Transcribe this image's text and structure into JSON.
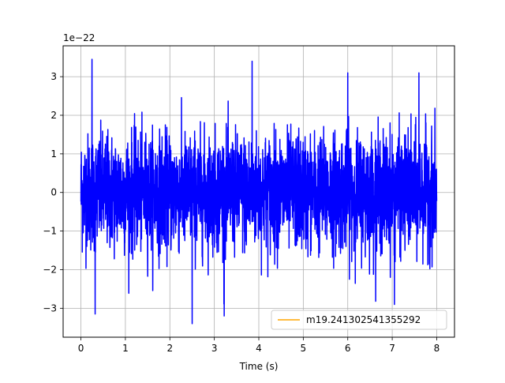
{
  "chart_data": {
    "type": "line",
    "title": "",
    "xlabel": "Time (s)",
    "ylabel": "",
    "y_scale_label": "1e−22",
    "xlim": [
      -0.4,
      8.4
    ],
    "ylim": [
      -3.75,
      3.8
    ],
    "xticks": [
      0,
      1,
      2,
      3,
      4,
      5,
      6,
      7,
      8
    ],
    "xtick_labels": [
      "0",
      "1",
      "2",
      "3",
      "4",
      "5",
      "6",
      "7",
      "8"
    ],
    "yticks": [
      -3,
      -2,
      -1,
      0,
      1,
      2,
      3
    ],
    "ytick_labels": [
      "−3",
      "−2",
      "−1",
      "0",
      "1",
      "2",
      "3"
    ],
    "grid": true,
    "legend_position": "lower-right",
    "series": [
      {
        "name": "",
        "color": "#0000ff",
        "x_range": [
          0,
          8
        ],
        "noise_sigma": 0.75,
        "y_min": -3.4,
        "y_max": 3.45,
        "peaks": [
          {
            "x": 0.25,
            "y": 3.45
          },
          {
            "x": 0.32,
            "y": -3.15
          },
          {
            "x": 2.5,
            "y": -3.4
          },
          {
            "x": 3.22,
            "y": -3.2
          },
          {
            "x": 3.85,
            "y": 3.4
          },
          {
            "x": 6.0,
            "y": 3.1
          },
          {
            "x": 7.05,
            "y": -2.9
          },
          {
            "x": 7.6,
            "y": 3.1
          }
        ]
      },
      {
        "name": "m19.241302541355292",
        "color": "#ffa500",
        "values": []
      }
    ]
  }
}
